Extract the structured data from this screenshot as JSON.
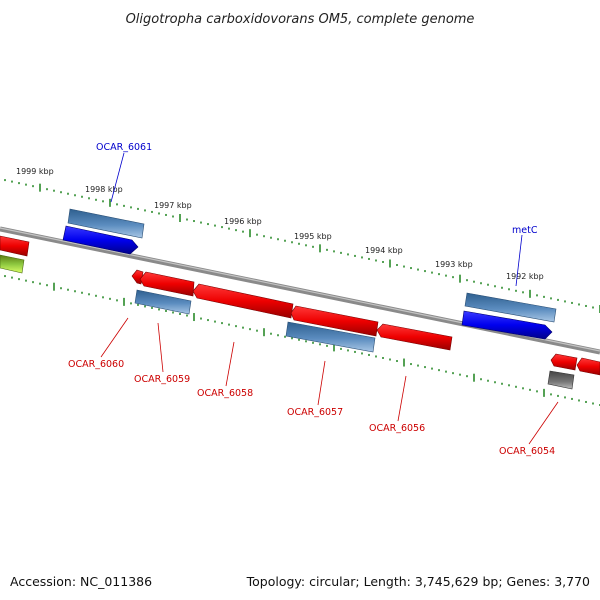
{
  "title": "Oligotropha carboxidovorans OM5, complete genome",
  "footer": {
    "accession": "Accession: NC_011386",
    "summary": "Topology: circular; Length: 3,745,629 bp; Genes: 3,770"
  },
  "tick_labels": [
    "1999 kbp",
    "1998 kbp",
    "1997 kbp",
    "1996 kbp",
    "1995 kbp",
    "1994 kbp",
    "1993 kbp",
    "1992 kbp"
  ],
  "genes_forward": [
    {
      "label": "OCAR_6061",
      "color": "#0000cc"
    },
    {
      "label": "metC",
      "color": "#0000cc"
    }
  ],
  "genes_reverse": [
    {
      "label": "OCAR_6060",
      "color": "#cc0000"
    },
    {
      "label": "OCAR_6059",
      "color": "#cc0000"
    },
    {
      "label": "OCAR_6058",
      "color": "#cc0000"
    },
    {
      "label": "OCAR_6057",
      "color": "#cc0000"
    },
    {
      "label": "OCAR_6056",
      "color": "#cc0000"
    },
    {
      "label": "OCAR_6054",
      "color": "#cc0000"
    }
  ],
  "colors": {
    "cds_forward": "#0000ee",
    "cds_reverse": "#ee0000",
    "gene_box": "#4f7fb0",
    "pseudo": "#666666",
    "ticks": "#2a8a2a",
    "backbone": "#8a8a8a"
  }
}
